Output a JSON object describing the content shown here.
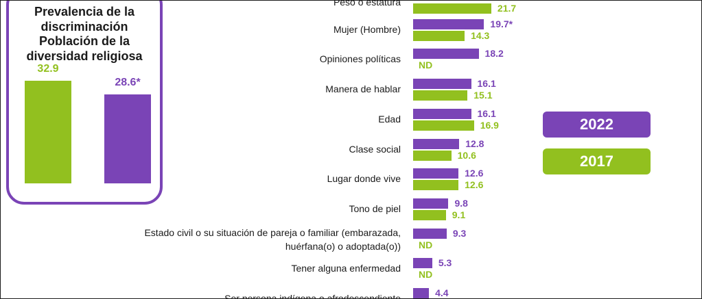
{
  "colors": {
    "series_2022": "#7a44b6",
    "series_2017": "#92c01f",
    "inset_border": "#7a44b6"
  },
  "inset": {
    "title_lines": [
      "Prevalencia de la",
      "discriminación",
      "Población de la",
      "diversidad religiosa"
    ],
    "bars": [
      {
        "year": "2017",
        "value": 32.9,
        "label": "32.9"
      },
      {
        "year": "2022",
        "value": 28.6,
        "label": "28.6*"
      }
    ]
  },
  "legend": {
    "y2022": "2022",
    "y2017": "2017"
  },
  "chart_data": {
    "type": "bar",
    "orientation": "horizontal",
    "categories": [
      "Peso o estatura",
      "Mujer (Hombre)",
      "Opiniones políticas",
      "Manera de hablar",
      "Edad",
      "Clase social",
      "Lugar donde vive",
      "Tono de piel",
      "Estado civil o su situación de pareja o familiar (embarazada, huérfana(o) o adoptada(o))",
      "Tener alguna enfermedad",
      "Ser persona indígena o afrodescendiente"
    ],
    "series": [
      {
        "name": "2022",
        "values": [
          null,
          19.7,
          18.2,
          16.1,
          16.1,
          12.8,
          12.6,
          9.8,
          9.3,
          5.3,
          4.4
        ],
        "labels": [
          "",
          "19.7*",
          "18.2",
          "16.1",
          "16.1",
          "12.8",
          "12.6",
          "9.8",
          "9.3",
          "5.3",
          "4.4"
        ]
      },
      {
        "name": "2017",
        "values": [
          21.7,
          14.3,
          null,
          15.1,
          16.9,
          10.6,
          12.6,
          9.1,
          null,
          null,
          null
        ],
        "labels": [
          "21.7",
          "14.3",
          "ND",
          "15.1",
          "16.9",
          "10.6",
          "12.6",
          "9.1",
          "ND",
          "ND",
          ""
        ]
      }
    ]
  }
}
